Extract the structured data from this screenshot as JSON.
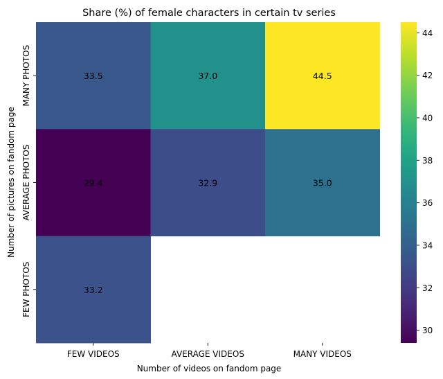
{
  "chart_data": {
    "type": "heatmap",
    "title": "Share (%) of female characters in certain tv series",
    "xlabel": "Number of videos on fandom page",
    "ylabel": "Number of pictures on fandom page",
    "x_categories": [
      "FEW VIDEOS",
      "AVERAGE VIDEOS",
      "MANY VIDEOS"
    ],
    "y_categories": [
      "MANY PHOTOS",
      "AVERAGE PHOTOS",
      "FEW PHOTOS"
    ],
    "values": [
      [
        33.5,
        37.0,
        44.5
      ],
      [
        29.4,
        32.9,
        35.0
      ],
      [
        33.2,
        null,
        null
      ]
    ],
    "value_labels": [
      [
        "33.5",
        "37.0",
        "44.5"
      ],
      [
        "29.4",
        "32.9",
        "35.0"
      ],
      [
        "33.2",
        "",
        ""
      ]
    ],
    "colormap": "viridis",
    "color_range": [
      29.4,
      44.5
    ],
    "colorbar_ticks": [
      30,
      32,
      34,
      36,
      38,
      40,
      42,
      44
    ],
    "colorbar_tick_labels": [
      "30",
      "32",
      "34",
      "36",
      "38",
      "40",
      "42",
      "44"
    ]
  }
}
